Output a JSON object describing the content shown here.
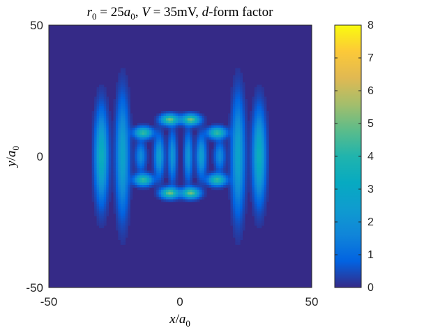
{
  "chart_data": {
    "type": "heatmap",
    "title": {
      "r": "r",
      "r_sub": "0",
      "eq1": " = 25",
      "a1": "a",
      "a1_sub": "0",
      "comma1": ", ",
      "V": "V",
      "eq2": " = 35mV, ",
      "d": "d",
      "rest": "-form factor"
    },
    "xlabel": {
      "num": "x",
      "slash": "/",
      "den": "a",
      "den_sub": "0"
    },
    "ylabel": {
      "num": "y",
      "slash": "/",
      "den": "a",
      "den_sub": "0"
    },
    "xlim": [
      -50,
      50
    ],
    "ylim": [
      -50,
      50
    ],
    "x_ticks": [
      -50,
      0,
      50
    ],
    "y_ticks": [
      -50,
      0,
      50
    ],
    "x_tick_labels": [
      "-50",
      "0",
      "50"
    ],
    "y_tick_labels": [
      "-50",
      "0",
      "50"
    ],
    "colorbar": {
      "range": [
        0,
        8
      ],
      "ticks": [
        0,
        1,
        2,
        3,
        4,
        5,
        6,
        7,
        8
      ],
      "tick_labels": [
        "0",
        "1",
        "2",
        "3",
        "4",
        "5",
        "6",
        "7",
        "8"
      ],
      "colormap": "parula"
    },
    "features": [
      {
        "kind": "stripe",
        "x": -30,
        "y": 0,
        "sx": 1.6,
        "sy": 11,
        "amp": 3.5
      },
      {
        "kind": "stripe",
        "x": 30,
        "y": 0,
        "sx": 1.6,
        "sy": 11,
        "amp": 3.5
      },
      {
        "kind": "stripe",
        "x": -22,
        "y": 0,
        "sx": 1.6,
        "sy": 14,
        "amp": 2.8
      },
      {
        "kind": "stripe",
        "x": 22,
        "y": 0,
        "sx": 1.6,
        "sy": 14,
        "amp": 2.8
      },
      {
        "kind": "spot",
        "x": -14,
        "y": 9,
        "sx": 2.2,
        "sy": 1.4,
        "amp": 4.3
      },
      {
        "kind": "spot",
        "x": 14,
        "y": 9,
        "sx": 2.2,
        "sy": 1.4,
        "amp": 4.3
      },
      {
        "kind": "spot",
        "x": -14,
        "y": -9,
        "sx": 2.2,
        "sy": 1.4,
        "amp": 4.3
      },
      {
        "kind": "spot",
        "x": 14,
        "y": -9,
        "sx": 2.2,
        "sy": 1.4,
        "amp": 4.3
      },
      {
        "kind": "spot",
        "x": -4,
        "y": 14,
        "sx": 2.2,
        "sy": 1.3,
        "amp": 5.0
      },
      {
        "kind": "spot",
        "x": 4,
        "y": 14,
        "sx": 2.2,
        "sy": 1.3,
        "amp": 5.0
      },
      {
        "kind": "spot",
        "x": -4,
        "y": -14,
        "sx": 2.2,
        "sy": 1.3,
        "amp": 5.0
      },
      {
        "kind": "spot",
        "x": 4,
        "y": -14,
        "sx": 2.2,
        "sy": 1.3,
        "amp": 5.0
      },
      {
        "kind": "spot",
        "x": -8,
        "y": 0,
        "sx": 1.2,
        "sy": 5,
        "amp": 2.6
      },
      {
        "kind": "spot",
        "x": 8,
        "y": 0,
        "sx": 1.2,
        "sy": 5,
        "amp": 2.6
      },
      {
        "kind": "spot",
        "x": -3,
        "y": 0,
        "sx": 1.0,
        "sy": 6,
        "amp": 2.2
      },
      {
        "kind": "spot",
        "x": 3,
        "y": 0,
        "sx": 1.0,
        "sy": 6,
        "amp": 2.2
      },
      {
        "kind": "spot",
        "x": -15,
        "y": 0,
        "sx": 1.3,
        "sy": 3.5,
        "amp": 1.8
      },
      {
        "kind": "spot",
        "x": 15,
        "y": 0,
        "sx": 1.3,
        "sy": 3.5,
        "amp": 1.8
      }
    ]
  }
}
